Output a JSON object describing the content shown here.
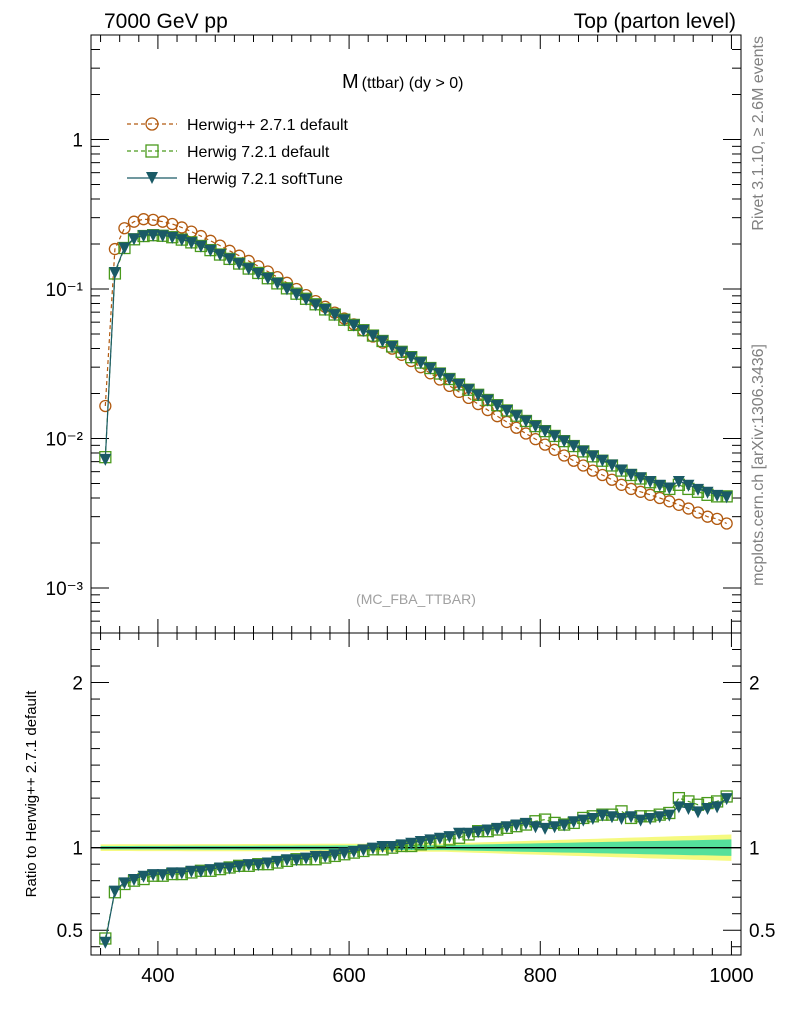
{
  "header": {
    "left": "7000 GeV pp",
    "right": "Top (parton level)"
  },
  "side_text": {
    "rivet": "Rivet 3.1.10, ≥ 2.6M events",
    "mcplots": "mcplots.cern.ch [arXiv:1306.3436]"
  },
  "watermark": "(MC_FBA_TTBAR)",
  "main_title": {
    "main": "M",
    "sub": "(ttbar) (dy > 0)"
  },
  "colors": {
    "herwigpp": "#b25a10",
    "herwig721": "#4a9a1c",
    "softtune": "#1a5a66",
    "band_inner": "#38dba0",
    "band_outer": "#f6fa80"
  },
  "legend": [
    {
      "label": "Herwig++ 2.7.1 default",
      "marker": "open-circle",
      "style": "dashed"
    },
    {
      "label": "Herwig 7.2.1 default",
      "marker": "open-square",
      "style": "dashed"
    },
    {
      "label": "Herwig 7.2.1 softTune",
      "marker": "filled-triangle-down",
      "style": "solid"
    }
  ],
  "ratio_ylabel": "Ratio to Herwig++ 2.7.1 default",
  "chart_data": [
    {
      "type": "line",
      "title": "M (ttbar) (dy > 0)",
      "xlim": [
        330,
        1010
      ],
      "ylim": [
        0.0005,
        5
      ],
      "yscale": "log",
      "x_ticks": [
        "400",
        "600",
        "800",
        "1000"
      ],
      "y_ticks": [
        "10⁻³",
        "10⁻²",
        "10⁻¹",
        "1"
      ],
      "x": [
        345,
        355,
        365,
        375,
        385,
        395,
        405,
        415,
        425,
        435,
        445,
        455,
        465,
        475,
        485,
        495,
        505,
        515,
        525,
        535,
        545,
        555,
        565,
        575,
        585,
        595,
        605,
        615,
        625,
        635,
        645,
        655,
        665,
        675,
        685,
        695,
        705,
        715,
        725,
        735,
        745,
        755,
        765,
        775,
        785,
        795,
        805,
        815,
        825,
        835,
        845,
        855,
        865,
        875,
        885,
        895,
        905,
        915,
        925,
        935,
        945,
        955,
        965,
        975,
        985,
        995
      ],
      "series": [
        {
          "name": "Herwig++ 2.7.1 default",
          "values": [
            0.0165,
            0.185,
            0.255,
            0.282,
            0.293,
            0.29,
            0.282,
            0.272,
            0.258,
            0.242,
            0.226,
            0.21,
            0.195,
            0.18,
            0.167,
            0.154,
            0.142,
            0.131,
            0.12,
            0.11,
            0.1,
            0.091,
            0.083,
            0.076,
            0.0695,
            0.0635,
            0.058,
            0.0528,
            0.0481,
            0.0438,
            0.0399,
            0.0363,
            0.033,
            0.03,
            0.0273,
            0.0248,
            0.0225,
            0.0205,
            0.0187,
            0.017,
            0.0155,
            0.0141,
            0.0129,
            0.0118,
            0.0108,
            0.0099,
            0.0091,
            0.0084,
            0.0077,
            0.0071,
            0.0066,
            0.0061,
            0.0057,
            0.0053,
            0.0049,
            0.0046,
            0.0044,
            0.0042,
            0.004,
            0.0038,
            0.0036,
            0.0034,
            0.0032,
            0.003,
            0.0029,
            0.0027
          ]
        },
        {
          "name": "Herwig 7.2.1 default",
          "values": [
            0.0075,
            0.127,
            0.188,
            0.215,
            0.226,
            0.229,
            0.227,
            0.222,
            0.214,
            0.205,
            0.194,
            0.182,
            0.17,
            0.159,
            0.148,
            0.137,
            0.128,
            0.118,
            0.109,
            0.101,
            0.093,
            0.086,
            0.079,
            0.073,
            0.0675,
            0.0623,
            0.0575,
            0.053,
            0.0488,
            0.0449,
            0.0413,
            0.038,
            0.035,
            0.0322,
            0.0296,
            0.0272,
            0.025,
            0.023,
            0.0212,
            0.0196,
            0.0181,
            0.0167,
            0.0154,
            0.0142,
            0.0131,
            0.0121,
            0.0112,
            0.0104,
            0.0096,
            0.0089,
            0.0082,
            0.0076,
            0.0071,
            0.0066,
            0.0061,
            0.0057,
            0.0054,
            0.0051,
            0.0048,
            0.0046,
            0.0049,
            0.0046,
            0.0044,
            0.0042,
            0.0041,
            0.0041
          ]
        },
        {
          "name": "Herwig 7.2.1 softTune",
          "values": [
            0.0073,
            0.13,
            0.19,
            0.218,
            0.229,
            0.231,
            0.229,
            0.223,
            0.215,
            0.206,
            0.195,
            0.183,
            0.171,
            0.16,
            0.149,
            0.138,
            0.128,
            0.119,
            0.11,
            0.101,
            0.093,
            0.086,
            0.079,
            0.0735,
            0.0678,
            0.0626,
            0.0578,
            0.0533,
            0.0491,
            0.0452,
            0.0416,
            0.0382,
            0.0352,
            0.0324,
            0.0298,
            0.0274,
            0.0252,
            0.0232,
            0.0214,
            0.0197,
            0.0182,
            0.0168,
            0.0155,
            0.0143,
            0.0132,
            0.0122,
            0.0113,
            0.0105,
            0.0097,
            0.009,
            0.0083,
            0.0077,
            0.0072,
            0.0067,
            0.0062,
            0.0058,
            0.0055,
            0.0052,
            0.0049,
            0.0047,
            0.0052,
            0.0049,
            0.0046,
            0.0044,
            0.0042,
            0.0041
          ]
        }
      ]
    },
    {
      "type": "line",
      "xlim": [
        330,
        1010
      ],
      "ylim": [
        0.35,
        2.3
      ],
      "yscale": "linear",
      "x_ticks": [
        "400",
        "600",
        "800",
        "1000"
      ],
      "y_ticks": [
        "0.5",
        "1",
        "2"
      ],
      "y_ticks_right": [
        "0.5",
        "1",
        "2"
      ],
      "reference_line": 1,
      "x": [
        345,
        355,
        365,
        375,
        385,
        395,
        405,
        415,
        425,
        435,
        445,
        455,
        465,
        475,
        485,
        495,
        505,
        515,
        525,
        535,
        545,
        555,
        565,
        575,
        585,
        595,
        605,
        615,
        625,
        635,
        645,
        655,
        665,
        675,
        685,
        695,
        705,
        715,
        725,
        735,
        745,
        755,
        765,
        775,
        785,
        795,
        805,
        815,
        825,
        835,
        845,
        855,
        865,
        875,
        885,
        895,
        905,
        915,
        925,
        935,
        945,
        955,
        965,
        975,
        985,
        995
      ],
      "series": [
        {
          "name": "Herwig 7.2.1 default",
          "values": [
            0.45,
            0.73,
            0.78,
            0.8,
            0.81,
            0.83,
            0.83,
            0.84,
            0.84,
            0.85,
            0.86,
            0.86,
            0.87,
            0.88,
            0.89,
            0.89,
            0.9,
            0.9,
            0.91,
            0.92,
            0.93,
            0.93,
            0.93,
            0.94,
            0.95,
            0.96,
            0.97,
            0.98,
            0.99,
            0.99,
            1.0,
            1.01,
            1.01,
            1.02,
            1.03,
            1.04,
            1.05,
            1.06,
            1.08,
            1.1,
            1.1,
            1.11,
            1.12,
            1.13,
            1.14,
            1.16,
            1.17,
            1.15,
            1.14,
            1.15,
            1.18,
            1.19,
            1.2,
            1.2,
            1.22,
            1.18,
            1.19,
            1.19,
            1.2,
            1.21,
            1.3,
            1.28,
            1.26,
            1.27,
            1.28,
            1.31
          ]
        },
        {
          "name": "Herwig 7.2.1 softTune",
          "values": [
            0.43,
            0.74,
            0.79,
            0.81,
            0.83,
            0.84,
            0.84,
            0.85,
            0.85,
            0.86,
            0.86,
            0.87,
            0.88,
            0.88,
            0.89,
            0.9,
            0.9,
            0.91,
            0.92,
            0.93,
            0.93,
            0.94,
            0.95,
            0.95,
            0.96,
            0.97,
            0.98,
            0.99,
            1.0,
            1.01,
            1.01,
            1.02,
            1.03,
            1.04,
            1.05,
            1.06,
            1.07,
            1.09,
            1.09,
            1.1,
            1.11,
            1.12,
            1.13,
            1.14,
            1.15,
            1.13,
            1.12,
            1.13,
            1.14,
            1.16,
            1.17,
            1.18,
            1.2,
            1.19,
            1.18,
            1.19,
            1.17,
            1.18,
            1.19,
            1.2,
            1.25,
            1.24,
            1.22,
            1.24,
            1.25,
            1.3
          ]
        }
      ],
      "band_inner_halfwidth": {
        "x": [
          345,
          700,
          1000
        ],
        "values": [
          0.01,
          0.015,
          0.05
        ]
      },
      "band_outer_halfwidth": {
        "x": [
          345,
          700,
          1000
        ],
        "values": [
          0.02,
          0.025,
          0.08
        ]
      }
    }
  ]
}
